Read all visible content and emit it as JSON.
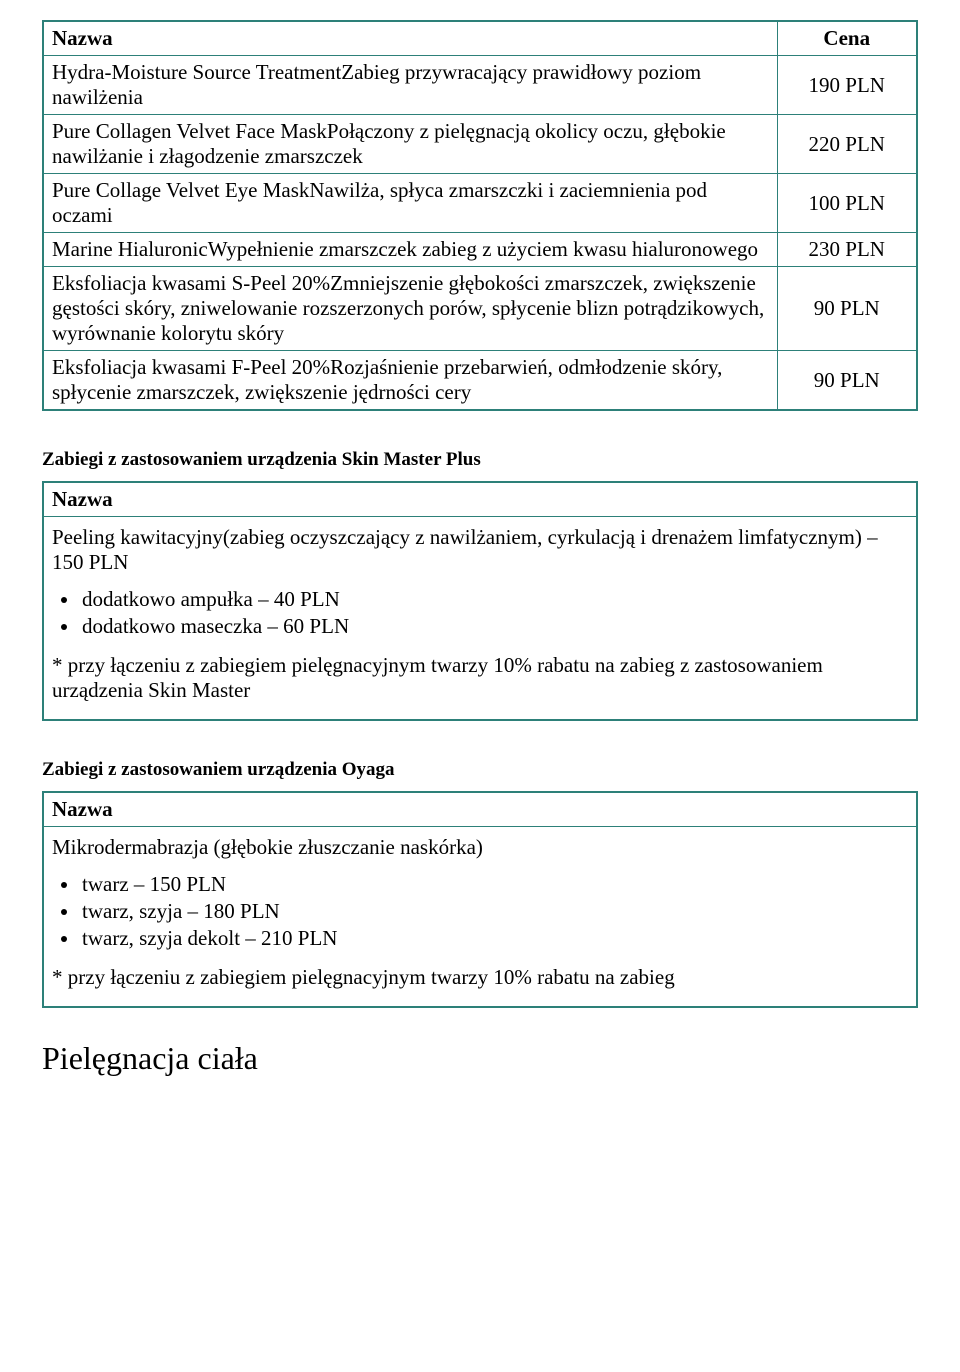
{
  "table1": {
    "headers": {
      "name": "Nazwa",
      "price": "Cena"
    },
    "rows": [
      {
        "name": "Hydra-Moisture Source TreatmentZabieg przywracający prawidłowy poziom nawilżenia",
        "price": "190 PLN"
      },
      {
        "name": "Pure Collagen Velvet Face MaskPołączony z pielęgnacją okolicy oczu, głębokie nawilżanie i złagodzenie zmarszczek",
        "price": "220 PLN"
      },
      {
        "name": "Pure Collage Velvet Eye MaskNawilża, spłyca zmarszczki i zaciemnienia pod oczami",
        "price": "100 PLN"
      },
      {
        "name": "Marine HialuronicWypełnienie zmarszczek zabieg z użyciem kwasu hialuronowego",
        "price": "230 PLN"
      },
      {
        "name": "Eksfoliacja kwasami S-Peel 20%Zmniejszenie głębokości zmarszczek, zwiększenie gęstości skóry, zniwelowanie rozszerzonych porów, spłycenie blizn potrądzikowych, wyrównanie kolorytu skóry",
        "price": "90 PLN"
      },
      {
        "name": "Eksfoliacja kwasami F-Peel 20%Rozjaśnienie przebarwień, odmłodzenie skóry, spłycenie zmarszczek, zwiększenie jędrności cery",
        "price": "90 PLN"
      }
    ]
  },
  "section2": {
    "heading": "Zabiegi z zastosowaniem urządzenia Skin Master Plus",
    "header": "Nazwa",
    "intro": "Peeling kawitacyjny(zabieg oczyszczający z nawilżaniem, cyrkulacją i drenażem limfatycznym) – 150 PLN",
    "bullets": [
      "dodatkowo ampułka – 40 PLN",
      "dodatkowo maseczka – 60 PLN"
    ],
    "note": "* przy łączeniu z zabiegiem pielęgnacyjnym twarzy 10% rabatu na zabieg z zastosowaniem urządzenia Skin Master"
  },
  "section3": {
    "heading": "Zabiegi z zastosowaniem urządzenia Oyaga",
    "header": "Nazwa",
    "intro": "Mikrodermabrazja (głębokie złuszczanie naskórka)",
    "bullets": [
      "twarz – 150 PLN",
      "twarz, szyja – 180 PLN",
      "twarz, szyja dekolt – 210 PLN"
    ],
    "note": "* przy łączeniu z zabiegiem pielęgnacyjnym  twarzy 10% rabatu na zabieg"
  },
  "final_heading": "Pielęgnacja ciała",
  "colors": {
    "border": "#2d8079",
    "text": "#000000",
    "background": "#ffffff"
  }
}
